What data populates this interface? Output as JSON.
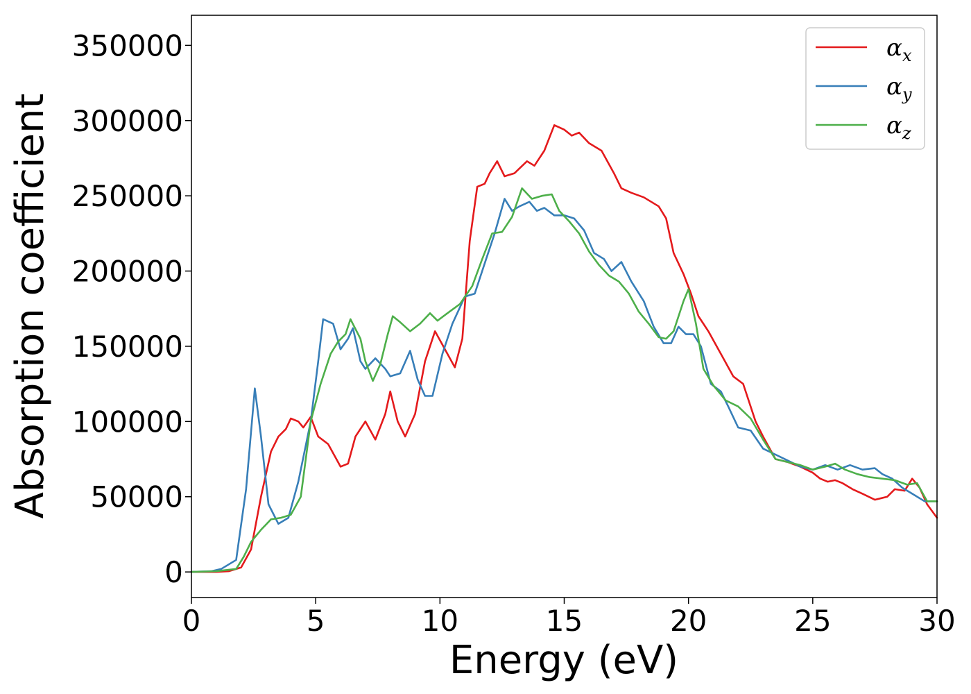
{
  "chart_data": {
    "type": "line",
    "title": "",
    "xlabel": "Energy (eV)",
    "ylabel": "Absorption coefficient",
    "xlim": [
      0,
      30
    ],
    "ylim": [
      -17000,
      370000
    ],
    "x_ticks": [
      0,
      5,
      10,
      15,
      20,
      25,
      30
    ],
    "y_ticks": [
      0,
      50000,
      100000,
      150000,
      200000,
      250000,
      300000,
      350000
    ],
    "grid": false,
    "legend_position": "top-right",
    "series": [
      {
        "name": "α",
        "subscript": "x",
        "color": "#e41a1c",
        "points": [
          [
            0,
            0
          ],
          [
            1,
            0
          ],
          [
            1.5,
            500
          ],
          [
            2,
            3000
          ],
          [
            2.4,
            15000
          ],
          [
            2.8,
            50000
          ],
          [
            3.2,
            80000
          ],
          [
            3.5,
            90000
          ],
          [
            3.8,
            95000
          ],
          [
            4.0,
            102000
          ],
          [
            4.3,
            100000
          ],
          [
            4.5,
            96000
          ],
          [
            4.8,
            103000
          ],
          [
            5.1,
            90000
          ],
          [
            5.5,
            85000
          ],
          [
            6.0,
            70000
          ],
          [
            6.3,
            72000
          ],
          [
            6.6,
            90000
          ],
          [
            7.0,
            100000
          ],
          [
            7.4,
            88000
          ],
          [
            7.8,
            105000
          ],
          [
            8.0,
            120000
          ],
          [
            8.3,
            100000
          ],
          [
            8.6,
            90000
          ],
          [
            9.0,
            105000
          ],
          [
            9.4,
            140000
          ],
          [
            9.8,
            160000
          ],
          [
            10.2,
            148000
          ],
          [
            10.6,
            136000
          ],
          [
            10.9,
            155000
          ],
          [
            11.2,
            220000
          ],
          [
            11.5,
            256000
          ],
          [
            11.8,
            258000
          ],
          [
            12.0,
            265000
          ],
          [
            12.3,
            273000
          ],
          [
            12.6,
            263000
          ],
          [
            13.0,
            265000
          ],
          [
            13.5,
            273000
          ],
          [
            13.8,
            270000
          ],
          [
            14.2,
            280000
          ],
          [
            14.6,
            297000
          ],
          [
            15.0,
            294000
          ],
          [
            15.3,
            290000
          ],
          [
            15.6,
            292000
          ],
          [
            16.0,
            285000
          ],
          [
            16.5,
            280000
          ],
          [
            17.0,
            265000
          ],
          [
            17.3,
            255000
          ],
          [
            17.7,
            252000
          ],
          [
            18.2,
            249000
          ],
          [
            18.8,
            243000
          ],
          [
            19.1,
            235000
          ],
          [
            19.4,
            212000
          ],
          [
            19.8,
            198000
          ],
          [
            20.1,
            185000
          ],
          [
            20.4,
            170000
          ],
          [
            20.8,
            160000
          ],
          [
            21.3,
            145000
          ],
          [
            21.8,
            130000
          ],
          [
            22.2,
            125000
          ],
          [
            22.7,
            100000
          ],
          [
            23.0,
            90000
          ],
          [
            23.5,
            75000
          ],
          [
            24.0,
            73000
          ],
          [
            24.5,
            70000
          ],
          [
            25.0,
            66000
          ],
          [
            25.3,
            62000
          ],
          [
            25.6,
            60000
          ],
          [
            25.9,
            61000
          ],
          [
            26.2,
            59000
          ],
          [
            26.6,
            55000
          ],
          [
            27.0,
            52000
          ],
          [
            27.5,
            48000
          ],
          [
            28.0,
            50000
          ],
          [
            28.3,
            55000
          ],
          [
            28.7,
            54000
          ],
          [
            29.0,
            62000
          ],
          [
            29.3,
            56000
          ],
          [
            29.6,
            45000
          ],
          [
            30.0,
            36000
          ]
        ]
      },
      {
        "name": "α",
        "subscript": "y",
        "color": "#377eb8",
        "points": [
          [
            0,
            0
          ],
          [
            0.8,
            500
          ],
          [
            1.2,
            2000
          ],
          [
            1.8,
            8000
          ],
          [
            2.2,
            55000
          ],
          [
            2.55,
            122000
          ],
          [
            2.8,
            90000
          ],
          [
            3.1,
            45000
          ],
          [
            3.5,
            32000
          ],
          [
            3.9,
            36000
          ],
          [
            4.3,
            60000
          ],
          [
            4.8,
            100000
          ],
          [
            5.1,
            140000
          ],
          [
            5.3,
            168000
          ],
          [
            5.7,
            165000
          ],
          [
            6.0,
            148000
          ],
          [
            6.3,
            155000
          ],
          [
            6.5,
            162000
          ],
          [
            6.8,
            140000
          ],
          [
            7.0,
            135000
          ],
          [
            7.4,
            142000
          ],
          [
            7.8,
            135000
          ],
          [
            8.0,
            130000
          ],
          [
            8.4,
            132000
          ],
          [
            8.8,
            147000
          ],
          [
            9.1,
            128000
          ],
          [
            9.4,
            117000
          ],
          [
            9.7,
            117000
          ],
          [
            10.1,
            145000
          ],
          [
            10.5,
            165000
          ],
          [
            11.0,
            183000
          ],
          [
            11.4,
            185000
          ],
          [
            11.8,
            205000
          ],
          [
            12.2,
            225000
          ],
          [
            12.6,
            248000
          ],
          [
            12.9,
            240000
          ],
          [
            13.2,
            243000
          ],
          [
            13.6,
            246000
          ],
          [
            13.9,
            240000
          ],
          [
            14.2,
            242000
          ],
          [
            14.6,
            237000
          ],
          [
            15.0,
            237000
          ],
          [
            15.4,
            235000
          ],
          [
            15.8,
            227000
          ],
          [
            16.2,
            212000
          ],
          [
            16.6,
            208000
          ],
          [
            16.9,
            200000
          ],
          [
            17.3,
            206000
          ],
          [
            17.7,
            193000
          ],
          [
            18.2,
            180000
          ],
          [
            18.6,
            163000
          ],
          [
            19.0,
            152000
          ],
          [
            19.3,
            152000
          ],
          [
            19.6,
            163000
          ],
          [
            19.9,
            158000
          ],
          [
            20.2,
            158000
          ],
          [
            20.5,
            150000
          ],
          [
            20.9,
            125000
          ],
          [
            21.3,
            120000
          ],
          [
            21.6,
            110000
          ],
          [
            22.0,
            96000
          ],
          [
            22.5,
            94000
          ],
          [
            23.0,
            82000
          ],
          [
            23.5,
            78000
          ],
          [
            24.0,
            74000
          ],
          [
            24.5,
            70000
          ],
          [
            25.0,
            68000
          ],
          [
            25.5,
            71000
          ],
          [
            26.0,
            68000
          ],
          [
            26.5,
            71000
          ],
          [
            27.0,
            68000
          ],
          [
            27.5,
            69000
          ],
          [
            27.8,
            65000
          ],
          [
            28.2,
            62000
          ],
          [
            28.6,
            56000
          ],
          [
            29.0,
            52000
          ],
          [
            29.5,
            47000
          ],
          [
            30.0,
            47000
          ]
        ]
      },
      {
        "name": "α",
        "subscript": "z",
        "color": "#4daf4a",
        "points": [
          [
            0,
            0
          ],
          [
            1,
            500
          ],
          [
            1.8,
            2000
          ],
          [
            2.1,
            10000
          ],
          [
            2.4,
            20000
          ],
          [
            2.8,
            28000
          ],
          [
            3.2,
            35000
          ],
          [
            3.6,
            36000
          ],
          [
            4.0,
            38000
          ],
          [
            4.4,
            50000
          ],
          [
            4.8,
            100000
          ],
          [
            5.2,
            125000
          ],
          [
            5.6,
            145000
          ],
          [
            5.9,
            153000
          ],
          [
            6.2,
            158000
          ],
          [
            6.4,
            168000
          ],
          [
            6.8,
            155000
          ],
          [
            7.0,
            140000
          ],
          [
            7.3,
            127000
          ],
          [
            7.6,
            138000
          ],
          [
            7.9,
            158000
          ],
          [
            8.1,
            170000
          ],
          [
            8.4,
            166000
          ],
          [
            8.8,
            160000
          ],
          [
            9.2,
            165000
          ],
          [
            9.6,
            172000
          ],
          [
            9.9,
            167000
          ],
          [
            10.3,
            172000
          ],
          [
            10.8,
            178000
          ],
          [
            11.3,
            190000
          ],
          [
            11.7,
            208000
          ],
          [
            12.1,
            225000
          ],
          [
            12.5,
            226000
          ],
          [
            12.9,
            236000
          ],
          [
            13.3,
            255000
          ],
          [
            13.7,
            248000
          ],
          [
            14.1,
            250000
          ],
          [
            14.5,
            251000
          ],
          [
            14.8,
            240000
          ],
          [
            15.2,
            233000
          ],
          [
            15.6,
            225000
          ],
          [
            16.0,
            213000
          ],
          [
            16.4,
            204000
          ],
          [
            16.8,
            197000
          ],
          [
            17.2,
            193000
          ],
          [
            17.6,
            185000
          ],
          [
            18.0,
            173000
          ],
          [
            18.4,
            165000
          ],
          [
            18.8,
            156000
          ],
          [
            19.1,
            155000
          ],
          [
            19.4,
            160000
          ],
          [
            19.8,
            180000
          ],
          [
            20.0,
            188000
          ],
          [
            20.3,
            165000
          ],
          [
            20.6,
            135000
          ],
          [
            21.0,
            124000
          ],
          [
            21.5,
            114000
          ],
          [
            22.0,
            110000
          ],
          [
            22.5,
            102000
          ],
          [
            23.0,
            88000
          ],
          [
            23.5,
            75000
          ],
          [
            24.0,
            73000
          ],
          [
            24.5,
            71000
          ],
          [
            25.0,
            68000
          ],
          [
            25.5,
            70000
          ],
          [
            25.9,
            72000
          ],
          [
            26.3,
            68000
          ],
          [
            26.8,
            65000
          ],
          [
            27.3,
            63000
          ],
          [
            27.8,
            62000
          ],
          [
            28.3,
            61000
          ],
          [
            28.8,
            58000
          ],
          [
            29.2,
            59000
          ],
          [
            29.6,
            47000
          ],
          [
            30.0,
            47000
          ]
        ]
      }
    ]
  }
}
